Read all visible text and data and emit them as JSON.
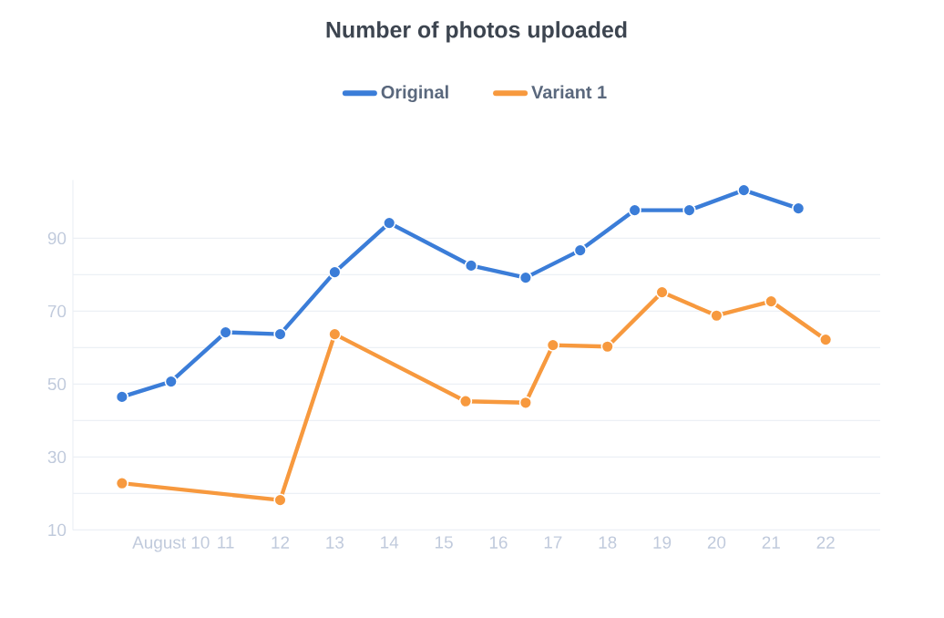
{
  "chart_data": {
    "type": "line",
    "title": "Number of photos uploaded",
    "x": [
      9.1,
      10,
      11,
      12,
      13,
      14,
      15.5,
      16.5,
      17.5,
      18.5,
      19.5,
      20.5,
      21.5
    ],
    "series": [
      {
        "name": "Original",
        "color": "#3b7dd8",
        "values": [
          46.5,
          50.7,
          64.2,
          63.7,
          80.7,
          94.2,
          82.5,
          79.2,
          86.7,
          97.7,
          97.7,
          103.2,
          98.2
        ]
      },
      {
        "name": "Variant 1",
        "color": "#f7993e",
        "x": [
          9.1,
          12,
          13,
          15.4,
          16.5,
          17,
          18,
          19,
          20,
          21,
          22
        ],
        "values": [
          22.8,
          18.2,
          63.7,
          45.3,
          44.9,
          60.7,
          60.3,
          75.2,
          68.8,
          72.7,
          62.2
        ]
      }
    ],
    "xlim": [
      8.2,
      23
    ],
    "ylim": [
      10,
      106
    ],
    "xticks": [
      {
        "value": 10,
        "label": "August 10"
      },
      11,
      12,
      13,
      14,
      15,
      16,
      17,
      18,
      19,
      20,
      21,
      22
    ],
    "yticks": [
      10,
      {
        "value": 20,
        "label": null
      },
      30,
      {
        "value": 40,
        "label": null
      },
      50,
      {
        "value": 60,
        "label": null
      },
      70,
      {
        "value": 80,
        "label": null
      },
      90
    ],
    "grid": "y",
    "legend": "top",
    "marker": "circle",
    "line_style": "solid"
  }
}
